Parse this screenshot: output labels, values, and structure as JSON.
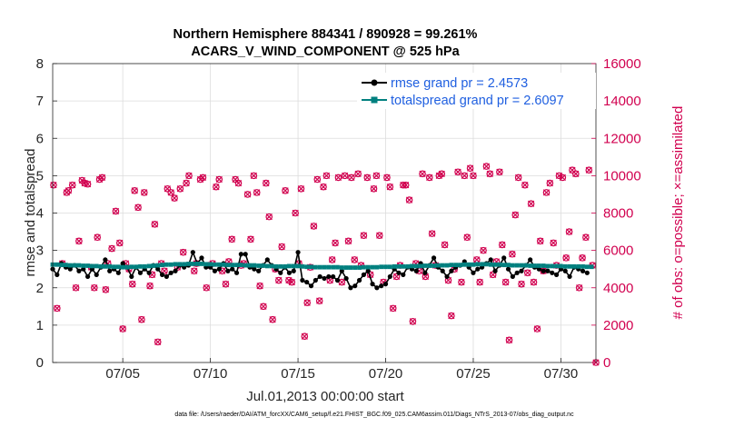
{
  "colors": {
    "rmse": "#000000",
    "spread": "#00807f",
    "obs": "#d1004f",
    "legend_text": "#1f5fe0"
  },
  "chart_data": {
    "type": "line",
    "title": [
      "Northern Hemisphere 884341 / 890928 = 99.261%",
      "ACARS_V_WIND_COMPONENT @ 525 hPa"
    ],
    "xlabel": "Jul.01,2013 00:00:00 start",
    "ylabel": "rmse and totalspread",
    "ylabel_right": "# of obs: o=possible; ×=assimilated",
    "xlim": [
      0,
      124
    ],
    "ylim": [
      0,
      8
    ],
    "ylim_right": [
      0,
      16000
    ],
    "x_ticks": [
      {
        "x": 16,
        "label": "07/05"
      },
      {
        "x": 36,
        "label": "07/10"
      },
      {
        "x": 56,
        "label": "07/15"
      },
      {
        "x": 76,
        "label": "07/20"
      },
      {
        "x": 96,
        "label": "07/25"
      },
      {
        "x": 116,
        "label": "07/30"
      }
    ],
    "y_ticks": [
      "0",
      "1",
      "2",
      "3",
      "4",
      "5",
      "6",
      "7",
      "8"
    ],
    "y_ticks_right": [
      "0",
      "2000",
      "4000",
      "6000",
      "8000",
      "10000",
      "12000",
      "14000",
      "16000"
    ],
    "legend": [
      {
        "name": "rmse grand pr = 2.4573"
      },
      {
        "name": "totalspread grand pr = 2.6097"
      }
    ],
    "series": [
      {
        "name": "rmse",
        "axis": "left",
        "values": [
          2.5,
          2.35,
          2.65,
          2.55,
          2.5,
          2.6,
          2.45,
          2.5,
          2.3,
          2.5,
          2.35,
          2.55,
          2.75,
          2.45,
          2.5,
          2.4,
          2.65,
          2.55,
          2.3,
          2.55,
          2.4,
          2.5,
          2.4,
          2.6,
          2.5,
          2.35,
          2.3,
          2.4,
          2.45,
          2.6,
          2.55,
          2.6,
          2.95,
          2.65,
          2.8,
          2.55,
          2.55,
          2.45,
          2.5,
          2.65,
          2.45,
          2.5,
          2.4,
          2.9,
          2.9,
          2.55,
          2.5,
          2.45,
          2.6,
          2.75,
          2.6,
          2.5,
          2.4,
          2.55,
          2.4,
          2.45,
          2.95,
          2.2,
          2.15,
          2.05,
          2.2,
          2.3,
          2.25,
          2.3,
          2.3,
          2.2,
          2.45,
          2.25,
          2.0,
          2.05,
          2.2,
          2.35,
          2.45,
          2.1,
          2.0,
          2.05,
          2.1,
          2.3,
          2.5,
          2.4,
          2.35,
          2.55,
          2.5,
          2.45,
          2.65,
          2.4,
          2.6,
          2.8,
          2.55,
          2.45,
          2.3,
          2.45,
          2.55,
          2.6,
          2.7,
          2.55,
          2.4,
          2.5,
          2.55,
          2.65,
          2.75,
          2.45,
          2.6,
          2.8,
          2.5,
          2.3,
          2.4,
          2.45,
          2.6,
          2.75,
          2.55,
          2.5,
          2.45,
          2.45,
          2.4,
          2.35,
          2.5,
          2.45,
          2.3,
          2.55,
          2.5,
          2.45,
          2.4
        ]
      },
      {
        "name": "totalspread",
        "axis": "left",
        "values": [
          2.62,
          2.62,
          2.61,
          2.61,
          2.6,
          2.6,
          2.6,
          2.59,
          2.59,
          2.58,
          2.58,
          2.57,
          2.57,
          2.57,
          2.56,
          2.56,
          2.55,
          2.55,
          2.56,
          2.56,
          2.57,
          2.57,
          2.58,
          2.59,
          2.6,
          2.61,
          2.62,
          2.62,
          2.63,
          2.63,
          2.63,
          2.64,
          2.64,
          2.64,
          2.64,
          2.63,
          2.63,
          2.62,
          2.62,
          2.62,
          2.61,
          2.61,
          2.61,
          2.61,
          2.6,
          2.6,
          2.6,
          2.59,
          2.59,
          2.58,
          2.58,
          2.57,
          2.57,
          2.57,
          2.58,
          2.58,
          2.58,
          2.57,
          2.56,
          2.56,
          2.55,
          2.55,
          2.55,
          2.55,
          2.55,
          2.55,
          2.54,
          2.54,
          2.54,
          2.54,
          2.54,
          2.55,
          2.55,
          2.55,
          2.55,
          2.56,
          2.56,
          2.56,
          2.57,
          2.57,
          2.57,
          2.57,
          2.58,
          2.58,
          2.58,
          2.59,
          2.59,
          2.59,
          2.6,
          2.6,
          2.6,
          2.61,
          2.61,
          2.61,
          2.62,
          2.62,
          2.62,
          2.63,
          2.63,
          2.63,
          2.62,
          2.62,
          2.62,
          2.61,
          2.61,
          2.6,
          2.6,
          2.6,
          2.6,
          2.59,
          2.59,
          2.59,
          2.59,
          2.58,
          2.58,
          2.58,
          2.58,
          2.57,
          2.57,
          2.57,
          2.57,
          2.57,
          2.56,
          2.56
        ]
      },
      {
        "name": "obs possible/assimilated",
        "axis": "right",
        "marker": "o-and-x",
        "points": [
          [
            0.2,
            9500
          ],
          [
            1.0,
            2900
          ],
          [
            2.2,
            5300
          ],
          [
            3.2,
            9100
          ],
          [
            3.6,
            9200
          ],
          [
            4.5,
            9500
          ],
          [
            5.3,
            4000
          ],
          [
            6.0,
            6500
          ],
          [
            6.7,
            9750
          ],
          [
            7.3,
            9600
          ],
          [
            8.0,
            9550
          ],
          [
            8.8,
            5100
          ],
          [
            9.5,
            4000
          ],
          [
            10.2,
            6700
          ],
          [
            10.7,
            9800
          ],
          [
            11.3,
            9900
          ],
          [
            12.1,
            3900
          ],
          [
            12.6,
            5300
          ],
          [
            13.5,
            6100
          ],
          [
            14.4,
            8100
          ],
          [
            15.3,
            6400
          ],
          [
            16.0,
            1800
          ],
          [
            16.7,
            5300
          ],
          [
            17.4,
            5000
          ],
          [
            18.2,
            4200
          ],
          [
            18.7,
            9200
          ],
          [
            19.5,
            8300
          ],
          [
            20.3,
            2300
          ],
          [
            20.9,
            9100
          ],
          [
            22.2,
            4100
          ],
          [
            22.7,
            4700
          ],
          [
            23.3,
            7400
          ],
          [
            24.0,
            1100
          ],
          [
            24.8,
            5300
          ],
          [
            25.5,
            4900
          ],
          [
            26.2,
            9300
          ],
          [
            27.0,
            9100
          ],
          [
            27.8,
            8800
          ],
          [
            28.5,
            5100
          ],
          [
            29.1,
            9300
          ],
          [
            29.8,
            5900
          ],
          [
            30.5,
            9600
          ],
          [
            31.1,
            10000
          ],
          [
            32.3,
            4900
          ],
          [
            32.8,
            5300
          ],
          [
            33.7,
            9800
          ],
          [
            34.3,
            9900
          ],
          [
            35.1,
            4000
          ],
          [
            35.6,
            5200
          ],
          [
            36.5,
            5300
          ],
          [
            37.3,
            9400
          ],
          [
            38.0,
            9800
          ],
          [
            38.7,
            4900
          ],
          [
            39.5,
            4200
          ],
          [
            40.2,
            5400
          ],
          [
            40.9,
            6600
          ],
          [
            41.7,
            9800
          ],
          [
            42.4,
            9600
          ],
          [
            43.0,
            5200
          ],
          [
            43.6,
            5300
          ],
          [
            44.5,
            9000
          ],
          [
            45.2,
            6600
          ],
          [
            45.9,
            10000
          ],
          [
            46.6,
            9100
          ],
          [
            47.3,
            4100
          ],
          [
            48.1,
            3000
          ],
          [
            48.7,
            9600
          ],
          [
            49.4,
            7800
          ],
          [
            50.2,
            2300
          ],
          [
            50.8,
            5000
          ],
          [
            51.6,
            4400
          ],
          [
            52.3,
            6200
          ],
          [
            53.1,
            9200
          ],
          [
            53.9,
            4400
          ],
          [
            54.6,
            4300
          ],
          [
            55.4,
            8000
          ],
          [
            56.2,
            5300
          ],
          [
            56.7,
            9300
          ],
          [
            57.5,
            1400
          ],
          [
            58.1,
            3200
          ],
          [
            58.8,
            5100
          ],
          [
            59.6,
            7300
          ],
          [
            60.4,
            9800
          ],
          [
            60.9,
            3300
          ],
          [
            61.8,
            9400
          ],
          [
            62.5,
            10000
          ],
          [
            63.3,
            4400
          ],
          [
            63.8,
            5500
          ],
          [
            64.5,
            6400
          ],
          [
            65.2,
            9900
          ],
          [
            66.0,
            4300
          ],
          [
            66.7,
            10000
          ],
          [
            67.5,
            6500
          ],
          [
            68.2,
            9900
          ],
          [
            68.9,
            5500
          ],
          [
            69.7,
            10100
          ],
          [
            70.4,
            5200
          ],
          [
            71.0,
            6800
          ],
          [
            71.8,
            9900
          ],
          [
            72.5,
            4700
          ],
          [
            73.3,
            9300
          ],
          [
            73.9,
            10000
          ],
          [
            74.6,
            6800
          ],
          [
            75.5,
            4300
          ],
          [
            76.3,
            9900
          ],
          [
            77.0,
            9400
          ],
          [
            77.7,
            2900
          ],
          [
            78.5,
            4600
          ],
          [
            79.3,
            5200
          ],
          [
            80.0,
            9500
          ],
          [
            80.6,
            9500
          ],
          [
            81.4,
            8700
          ],
          [
            82.2,
            2200
          ],
          [
            82.9,
            5300
          ],
          [
            83.7,
            4900
          ],
          [
            84.4,
            10100
          ],
          [
            85.1,
            4600
          ],
          [
            86.0,
            9900
          ],
          [
            86.6,
            6900
          ],
          [
            87.4,
            5200
          ],
          [
            88.2,
            10000
          ],
          [
            88.8,
            10100
          ],
          [
            89.5,
            6300
          ],
          [
            90.3,
            4400
          ],
          [
            91.0,
            2500
          ],
          [
            91.7,
            5000
          ],
          [
            92.5,
            10200
          ],
          [
            93.3,
            4300
          ],
          [
            94.0,
            10000
          ],
          [
            94.6,
            6700
          ],
          [
            95.3,
            10400
          ],
          [
            96.0,
            10000
          ],
          [
            96.8,
            5500
          ],
          [
            97.5,
            4300
          ],
          [
            98.3,
            6000
          ],
          [
            99.0,
            10500
          ],
          [
            99.8,
            10100
          ],
          [
            100.5,
            4700
          ],
          [
            101.3,
            5400
          ],
          [
            102.0,
            10200
          ],
          [
            102.6,
            6300
          ],
          [
            103.4,
            4300
          ],
          [
            104.2,
            1200
          ],
          [
            104.9,
            5800
          ],
          [
            105.6,
            7900
          ],
          [
            106.3,
            9900
          ],
          [
            107.0,
            4200
          ],
          [
            107.8,
            9500
          ],
          [
            108.4,
            4800
          ],
          [
            109.2,
            8500
          ],
          [
            109.8,
            4300
          ],
          [
            110.6,
            1800
          ],
          [
            111.3,
            6500
          ],
          [
            112.0,
            4900
          ],
          [
            112.7,
            9100
          ],
          [
            113.5,
            9600
          ],
          [
            114.3,
            6400
          ],
          [
            115.0,
            5200
          ],
          [
            115.6,
            10000
          ],
          [
            116.4,
            9900
          ],
          [
            117.2,
            5600
          ],
          [
            117.9,
            7000
          ],
          [
            118.6,
            10300
          ],
          [
            119.4,
            10100
          ],
          [
            120.2,
            4000
          ],
          [
            120.9,
            5600
          ],
          [
            121.7,
            6700
          ],
          [
            122.4,
            10300
          ],
          [
            123.2,
            5200
          ],
          [
            124.0,
            0
          ]
        ]
      }
    ]
  },
  "footer": "data file: /Users/raeder/DAI/ATM_forcXX/CAM6_setup/f.e21.FHIST_BGC.f09_025.CAM6assim.011/Diags_NTrS_2013-07/obs_diag_output.nc"
}
